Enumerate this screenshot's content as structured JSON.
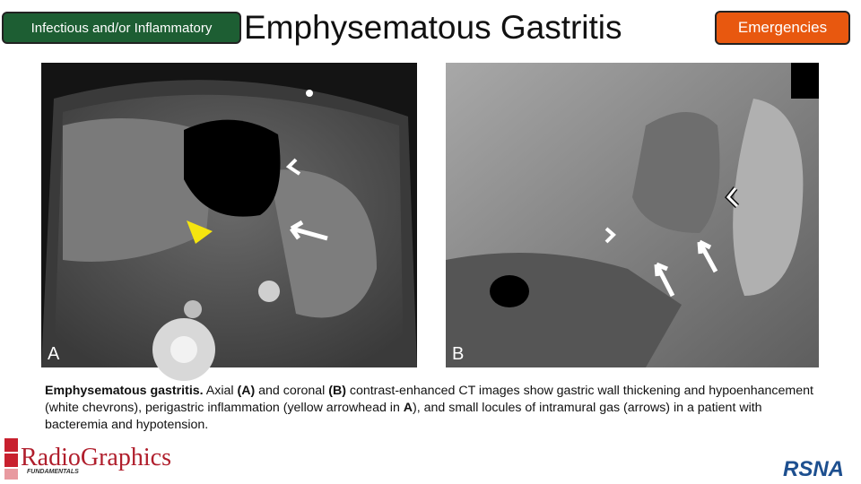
{
  "header": {
    "category_tag": "Infectious and/or Inflammatory",
    "title": "Emphysematous Gastritis",
    "section_tag": "Emergencies"
  },
  "figures": [
    {
      "label": "A"
    },
    {
      "label": "B"
    }
  ],
  "caption": {
    "runs": [
      {
        "text": "Emphysematous gastritis.",
        "bold": true
      },
      {
        "text": " Axial ",
        "bold": false
      },
      {
        "text": "(A)",
        "bold": true
      },
      {
        "text": " and coronal ",
        "bold": false
      },
      {
        "text": "(B)",
        "bold": true
      },
      {
        "text": " contrast-enhanced CT images show gastric wall thickening and hypoenhancement (white chevrons), perigastric inflammation (yellow arrowhead in ",
        "bold": false
      },
      {
        "text": "A",
        "bold": true
      },
      {
        "text": "), and small locules of intramural gas (arrows) in a patient with bacteremia and hypotension.",
        "bold": false
      }
    ]
  },
  "footer": {
    "logo_main": "RadioGraphics",
    "logo_sub": "FUNDAMENTALS",
    "society": "RSNA"
  }
}
